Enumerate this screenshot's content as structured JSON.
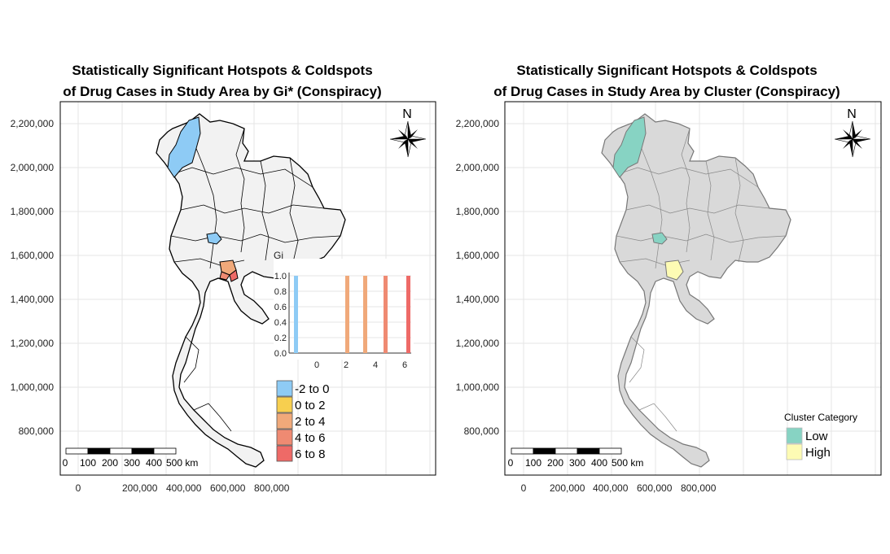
{
  "left_map": {
    "title_line1": "Statistically Significant Hotspots & Coldspots",
    "title_line2": "of Drug Cases in Study Area by Gi* (Conspiracy)",
    "y_ticks": [
      "2,200,000",
      "2,000,000",
      "1,800,000",
      "1,600,000",
      "1,400,000",
      "1,200,000",
      "1,000,000",
      "800,000"
    ],
    "x_ticks": [
      "0",
      "200,000",
      "400,000",
      "600,000",
      "800,000"
    ],
    "north_label": "N",
    "scalebar": {
      "labels": [
        "0",
        "100",
        "200",
        "300",
        "400",
        "500 km"
      ]
    },
    "inset": {
      "title": "Gi",
      "y_ticks": [
        "1.0",
        "0.8",
        "0.6",
        "0.4",
        "0.2",
        "0.0"
      ],
      "x_ticks": [
        "0",
        "2",
        "4",
        "6"
      ]
    },
    "legend": [
      {
        "label": "-2 to 0",
        "color": "#8ecbf5"
      },
      {
        "label": "0 to 2",
        "color": "#f7cf4f"
      },
      {
        "label": "2 to 4",
        "color": "#f0a97a"
      },
      {
        "label": "4 to 6",
        "color": "#ef8a72"
      },
      {
        "label": "6 to 8",
        "color": "#ee6a67"
      }
    ]
  },
  "right_map": {
    "title_line1": "Statistically Significant Hotspots & Coldspots",
    "title_line2": "of Drug Cases in Study Area by Cluster (Conspiracy)",
    "y_ticks": [
      "2,200,000",
      "2,000,000",
      "1,800,000",
      "1,600,000",
      "1,400,000",
      "1,200,000",
      "1,000,000",
      "800,000"
    ],
    "x_ticks": [
      "0",
      "200,000",
      "400,000",
      "600,000",
      "800,000"
    ],
    "north_label": "N",
    "scalebar": {
      "labels": [
        "0",
        "100",
        "200",
        "300",
        "400",
        "500 km"
      ]
    },
    "legend_title": "Cluster Category",
    "legend": [
      {
        "label": "Low",
        "color": "#87d3c3"
      },
      {
        "label": "High",
        "color": "#fdfbb4"
      }
    ]
  }
}
